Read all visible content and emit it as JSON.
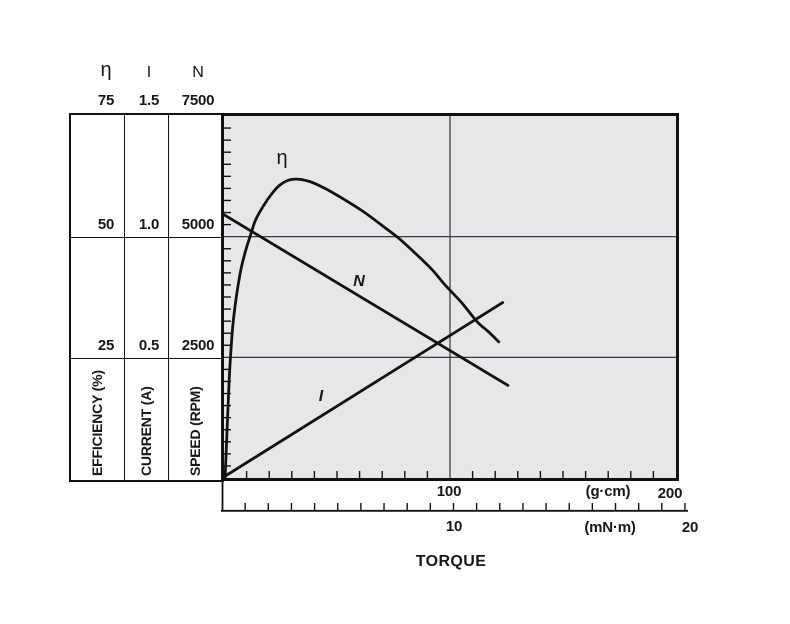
{
  "figure": {
    "bg_color": "#ffffff",
    "line_color": "#111111",
    "plot_bg_color": "#e7e7e9",
    "text_color": "#17171a"
  },
  "left_table": {
    "columns": [
      {
        "symbol": "η",
        "scale_max": "75",
        "scale_mid": "50",
        "scale_low": "25",
        "axis_title": "EFFICIENCY (%)"
      },
      {
        "symbol": "I",
        "scale_max": "1.5",
        "scale_mid": "1.0",
        "scale_low": "0.5",
        "axis_title": "CURRENT (A)"
      },
      {
        "symbol": "N",
        "scale_max": "7500",
        "scale_mid": "5000",
        "scale_low": "2500",
        "axis_title": "SPEED (RPM)"
      }
    ]
  },
  "x_axis": {
    "title": "TORQUE",
    "gcm_tick_100": "100",
    "gcm_tick_200": "200",
    "gcm_unit": "(g·cm)",
    "mnm_tick_10": "10",
    "mnm_tick_20": "20",
    "mnm_unit": "(mN·m)"
  },
  "curve_labels": {
    "eta": "η",
    "speed": "N",
    "current": "I"
  },
  "chart_data": {
    "type": "line",
    "xlabel": "TORQUE",
    "x_axis_units": [
      {
        "unit": "g·cm",
        "min": 0,
        "max": 200,
        "labeled_ticks": [
          100,
          200
        ],
        "minor_tick_step": 10
      },
      {
        "unit": "mN·m",
        "min": 0,
        "max": 20,
        "labeled_ticks": [
          10,
          20
        ],
        "minor_tick_step": 1
      }
    ],
    "y_axes": [
      {
        "symbol": "η",
        "label": "EFFICIENCY (%)",
        "min": 0,
        "max": 75,
        "ticks": [
          25,
          50,
          75
        ],
        "minor_tick_step": 2.5
      },
      {
        "symbol": "I",
        "label": "CURRENT (A)",
        "min": 0,
        "max": 1.5,
        "ticks": [
          0.5,
          1.0,
          1.5
        ],
        "minor_tick_step": 0.05
      },
      {
        "symbol": "N",
        "label": "SPEED (RPM)",
        "min": 0,
        "max": 7500,
        "ticks": [
          2500,
          5000,
          7500
        ],
        "minor_tick_step": 250
      }
    ],
    "grid": {
      "h_lines_at_pct": [
        25,
        50
      ],
      "v_lines_at_gcm": [
        100
      ]
    },
    "legend_position": "on-curve",
    "series": [
      {
        "name": "η",
        "y_axis": "η",
        "unit": "%",
        "x_unit": "g·cm",
        "points": [
          [
            0.5,
            0
          ],
          [
            1,
            6
          ],
          [
            1.8,
            15
          ],
          [
            2.6,
            23
          ],
          [
            3.8,
            31
          ],
          [
            5.3,
            37
          ],
          [
            7.4,
            43
          ],
          [
            9.5,
            47
          ],
          [
            11.5,
            50
          ],
          [
            14,
            53.5
          ],
          [
            17.6,
            56.5
          ],
          [
            21,
            58.8
          ],
          [
            24.5,
            60.6
          ],
          [
            28.6,
            61.7
          ],
          [
            33,
            61.9
          ],
          [
            38,
            61.4
          ],
          [
            43,
            60.4
          ],
          [
            50,
            58.6
          ],
          [
            61,
            55.4
          ],
          [
            70,
            52.3
          ],
          [
            77.5,
            49.6
          ],
          [
            85,
            46.4
          ],
          [
            92,
            43.2
          ],
          [
            98,
            39.9
          ],
          [
            105,
            36.4
          ],
          [
            112,
            32.4
          ],
          [
            117,
            30.3
          ],
          [
            121.6,
            28.2
          ]
        ]
      },
      {
        "name": "N",
        "y_axis": "N",
        "unit": "RPM",
        "x_unit": "g·cm",
        "points": [
          [
            0,
            5455
          ],
          [
            125.6,
            1920
          ]
        ]
      },
      {
        "name": "I",
        "y_axis": "I",
        "unit": "A",
        "x_unit": "g·cm",
        "points": [
          [
            0,
            0.005
          ],
          [
            123.3,
            0.727
          ]
        ]
      }
    ]
  }
}
